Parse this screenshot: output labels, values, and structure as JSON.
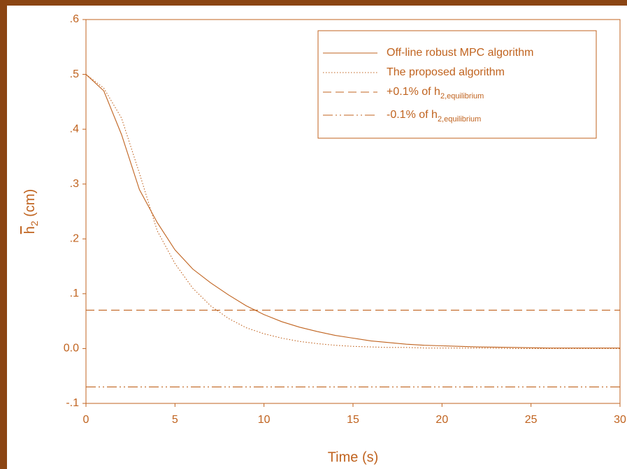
{
  "chart_data": {
    "type": "line",
    "xlabel": "Time (s)",
    "ylabel": {
      "text": "h",
      "subscript": "2",
      "suffix": " (cm)"
    },
    "xlim": [
      0,
      30
    ],
    "xticks": [
      0,
      5,
      10,
      15,
      20,
      25,
      30
    ],
    "ylim": [
      -0.1,
      0.6
    ],
    "yticks": [
      {
        "value": -0.1,
        "label": "-.1"
      },
      {
        "value": 0,
        "label": "0.0"
      },
      {
        "value": 0.1,
        "label": ".1"
      },
      {
        "value": 0.2,
        "label": ".2"
      },
      {
        "value": 0.3,
        "label": ".3"
      },
      {
        "value": 0.4,
        "label": ".4"
      },
      {
        "value": 0.5,
        "label": ".5"
      },
      {
        "value": 0.6,
        "label": ".6"
      }
    ],
    "grid": false,
    "legend": "upper right",
    "series": [
      {
        "name": "Off-line robust MPC algorithm",
        "color": "#c0631f",
        "style": "solid",
        "x": [
          0,
          1,
          2,
          3,
          4,
          5,
          6,
          7,
          8,
          9,
          10,
          11,
          12,
          13,
          14,
          15,
          16,
          17,
          18,
          19,
          20,
          22,
          24,
          26,
          28,
          30
        ],
        "values": [
          0.5,
          0.47,
          0.39,
          0.29,
          0.23,
          0.18,
          0.145,
          0.12,
          0.098,
          0.078,
          0.062,
          0.049,
          0.039,
          0.031,
          0.024,
          0.019,
          0.014,
          0.011,
          0.008,
          0.006,
          0.005,
          0.003,
          0.002,
          0.001,
          0.001,
          0.001
        ]
      },
      {
        "name": "The proposed algorithm",
        "color": "#c0631f",
        "style": "dotted",
        "x": [
          0,
          1,
          2,
          3,
          4,
          5,
          6,
          7,
          8,
          9,
          10,
          11,
          12,
          13,
          14,
          15,
          16,
          17,
          18,
          19,
          20,
          22,
          24,
          26,
          28,
          30
        ],
        "values": [
          0.5,
          0.475,
          0.42,
          0.32,
          0.215,
          0.155,
          0.11,
          0.078,
          0.055,
          0.038,
          0.027,
          0.019,
          0.013,
          0.009,
          0.006,
          0.004,
          0.003,
          0.002,
          0.002,
          0.001,
          0.001,
          0.001,
          0,
          0,
          0,
          0
        ]
      },
      {
        "name": "+0.1% of h",
        "subscript": "2,equilibrium",
        "color": "#c0631f",
        "style": "dashed",
        "x": [
          0,
          30
        ],
        "values": [
          0.07,
          0.07
        ]
      },
      {
        "name": "-0.1% of h",
        "subscript": "2,equilibrium",
        "color": "#c0631f",
        "style": "dashdotdot",
        "x": [
          0,
          30
        ],
        "values": [
          -0.07,
          -0.07
        ]
      }
    ]
  }
}
